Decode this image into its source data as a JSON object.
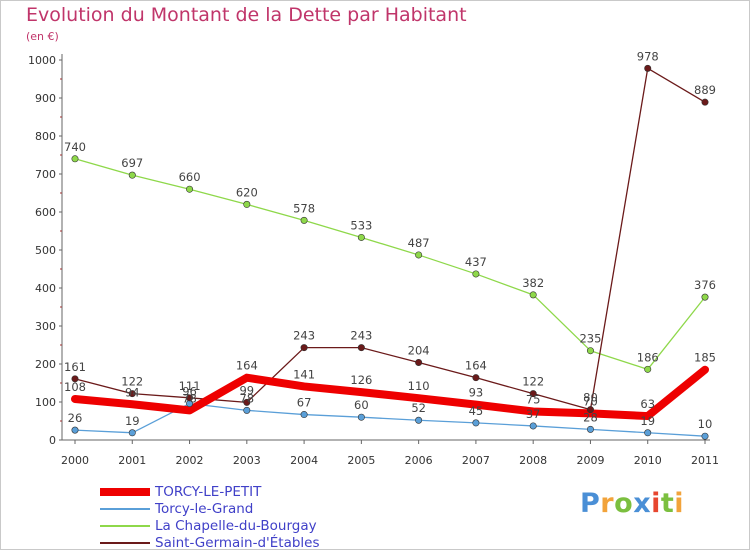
{
  "title": "Evolution du Montant de la Dette par Habitant",
  "unit_label": "(en €)",
  "logo": {
    "text": "Proxiti",
    "colors": [
      "#4a8fd6",
      "#f2a33a",
      "#7bbf3f",
      "#4a8fd6",
      "#e7462f",
      "#7bbf3f",
      "#f2a33a"
    ]
  },
  "chart_data": {
    "type": "line",
    "title": "Evolution du Montant de la Dette par Habitant",
    "ylabel": "(en €)",
    "xlabel": "",
    "x": [
      "2000",
      "2001",
      "2002",
      "2003",
      "2004",
      "2005",
      "2006",
      "2007",
      "2008",
      "2009",
      "2010",
      "2011"
    ],
    "ylim": [
      0,
      1000
    ],
    "yticks": [
      "0",
      "100",
      "200",
      "300",
      "400",
      "500",
      "600",
      "700",
      "800",
      "900",
      "1000"
    ],
    "grid": false,
    "legend": "bottom-left",
    "series": [
      {
        "name": "TORCY-LE-PETIT",
        "color": "#ee0000",
        "thick": true,
        "values": [
          108,
          94,
          78,
          164,
          141,
          126,
          110,
          93,
          75,
          70,
          63,
          185
        ]
      },
      {
        "name": "Torcy-le-Grand",
        "color": "#5a9fd8",
        "thick": false,
        "values": [
          26,
          19,
          96,
          78,
          67,
          60,
          52,
          45,
          37,
          28,
          19,
          10
        ]
      },
      {
        "name": "La Chapelle-du-Bourgay",
        "color": "#8ed84a",
        "thick": false,
        "values": [
          740,
          697,
          660,
          620,
          578,
          533,
          487,
          437,
          382,
          235,
          186,
          376
        ]
      },
      {
        "name": "Saint-Germain-d'Étables",
        "color": "#6b1a1a",
        "thick": false,
        "values": [
          161,
          122,
          111,
          99,
          243,
          243,
          204,
          164,
          122,
          80,
          978,
          889
        ]
      }
    ]
  }
}
